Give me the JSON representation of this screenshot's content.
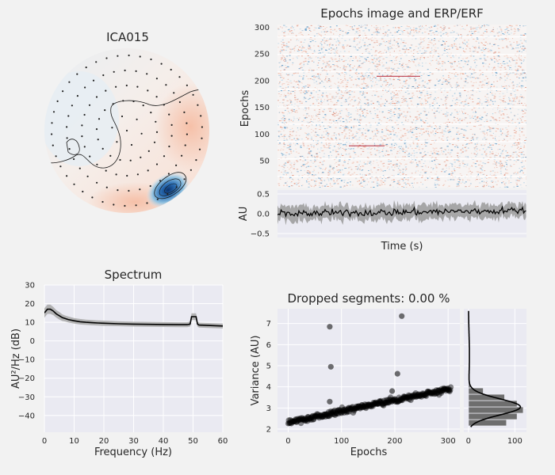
{
  "topomap": {
    "title": "ICA015"
  },
  "epochs_image": {
    "title": "Epochs image and ERP/ERF",
    "ylabel": "Epochs",
    "yticks": [
      50,
      100,
      150,
      200,
      250,
      300
    ],
    "n_epochs": 305
  },
  "erp": {
    "ylabel": "AU",
    "xlabel": "Time (s)",
    "yticks": [
      "0.5",
      "0.0",
      "−0.5"
    ],
    "ylim": [
      -0.6,
      0.6
    ]
  },
  "spectrum": {
    "title": "Spectrum",
    "xlabel": "Frequency (Hz)",
    "ylabel": "AU²/Hz (dB)",
    "xticks": [
      0,
      10,
      20,
      30,
      40,
      50,
      60
    ],
    "yticks": [
      30,
      20,
      10,
      0,
      -10,
      -20,
      -30,
      -40
    ],
    "xlim": [
      0,
      60
    ],
    "ylim": [
      -49,
      30
    ]
  },
  "variance": {
    "title": "Dropped segments: 0.00 %",
    "xlabel": "Epochs",
    "ylabel": "Variance (AU)",
    "xticks": [
      0,
      100,
      200,
      300
    ],
    "yticks": [
      2,
      3,
      4,
      5,
      6,
      7
    ],
    "xlim": [
      -20,
      322
    ],
    "ylim": [
      1.85,
      7.7
    ]
  },
  "histogram": {
    "xticks": [
      0,
      100
    ],
    "xlim": [
      -10,
      125
    ]
  },
  "chart_data": [
    {
      "type": "line",
      "title": "Spectrum",
      "xlabel": "Frequency (Hz)",
      "ylabel": "AU²/Hz (dB)",
      "series": [
        {
          "x": [
            0,
            1,
            2,
            3,
            4,
            5,
            6,
            7,
            8,
            10,
            12,
            14,
            16,
            18,
            20,
            25,
            30,
            35,
            40,
            45,
            48,
            49,
            49.5,
            51,
            51.5,
            52,
            55,
            60
          ],
          "values": [
            15,
            17,
            17,
            16,
            14.5,
            13.5,
            12.5,
            12,
            11.5,
            10.8,
            10.3,
            10,
            9.8,
            9.6,
            9.5,
            9.2,
            9,
            8.9,
            8.8,
            8.7,
            8.7,
            9,
            13,
            13,
            9,
            8.5,
            8.3,
            8
          ],
          "std": [
            2.5,
            2.5,
            2.5,
            2.2,
            2,
            2,
            1.8,
            1.6,
            1.6,
            1.5,
            1.5,
            1.4,
            1.4,
            1.4,
            1.4,
            1.3,
            1.3,
            1.3,
            1.3,
            1.3,
            1.3,
            1.3,
            1.8,
            1.8,
            1.3,
            1.3,
            1.3,
            1.3
          ]
        }
      ],
      "xlim": [
        0,
        60
      ],
      "ylim": [
        -49,
        30
      ]
    },
    {
      "type": "scatter",
      "title": "Dropped segments: 0.00 %",
      "xlabel": "Epochs",
      "ylabel": "Variance (AU)",
      "trend": {
        "x": [
          0,
          300
        ],
        "y": [
          2.3,
          3.9
        ],
        "seed": 7
      },
      "outliers": [
        {
          "x": 78,
          "y": 6.85
        },
        {
          "x": 80,
          "y": 4.95
        },
        {
          "x": 213,
          "y": 7.35
        },
        {
          "x": 205,
          "y": 4.62
        },
        {
          "x": 78,
          "y": 3.3
        },
        {
          "x": 195,
          "y": 3.8
        }
      ],
      "xlim": [
        -20,
        322
      ],
      "ylim": [
        1.85,
        7.7
      ]
    },
    {
      "type": "bar",
      "orientation": "horizontal",
      "bins": [
        {
          "y0": 2.15,
          "y1": 2.45,
          "count": 82
        },
        {
          "y0": 2.45,
          "y1": 2.75,
          "count": 105
        },
        {
          "y0": 2.75,
          "y1": 3.05,
          "count": 118
        },
        {
          "y0": 3.05,
          "y1": 3.35,
          "count": 105
        },
        {
          "y0": 3.35,
          "y1": 3.65,
          "count": 78
        },
        {
          "y0": 3.65,
          "y1": 3.95,
          "count": 32
        },
        {
          "y0": 3.95,
          "y1": 4.25,
          "count": 4
        }
      ],
      "xlim": [
        -10,
        125
      ]
    }
  ]
}
